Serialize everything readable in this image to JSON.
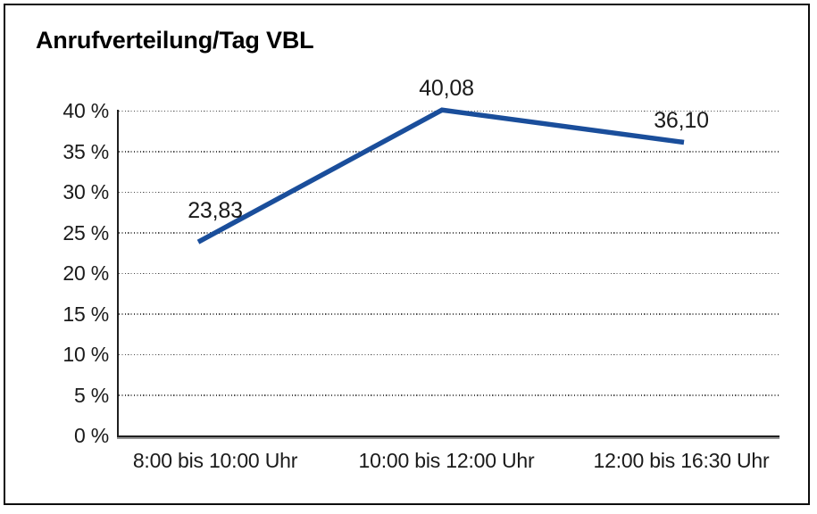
{
  "chart_data": {
    "type": "line",
    "title": "Anrufverteilung/Tag VBL",
    "categories": [
      "8:00 bis 10:00 Uhr",
      "10:00 bis 12:00 Uhr",
      "12:00 bis 16:30 Uhr"
    ],
    "values": [
      23.83,
      40.08,
      36.1
    ],
    "point_labels": [
      "23,83",
      "40,08",
      "36,10"
    ],
    "xlabel": "",
    "ylabel": "",
    "ylim": [
      0,
      40
    ],
    "ytick_values": [
      40,
      35,
      30,
      25,
      20,
      15,
      10,
      5,
      0
    ],
    "ytick_labels": [
      "40 %",
      "35 %",
      "30 %",
      "25 %",
      "20 %",
      "15 %",
      "10 %",
      "5 %",
      "0 %"
    ],
    "legend": "none",
    "grid": "horizontal-dotted",
    "line_color": "#1A4E9B",
    "text_color": "#1A1A1A",
    "border_color": "#0D0D0D",
    "background": "#FFFFFF"
  }
}
